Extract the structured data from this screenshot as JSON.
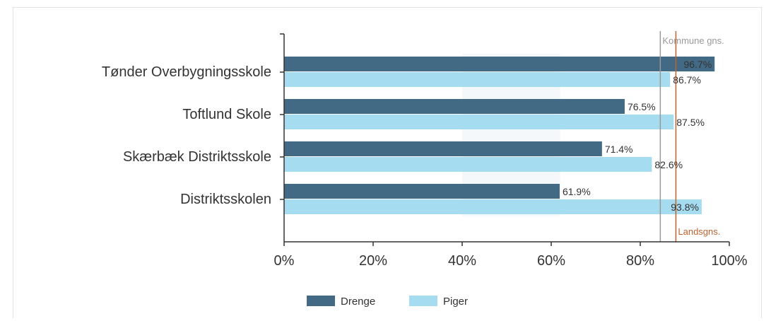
{
  "chart_data": {
    "type": "bar",
    "orientation": "horizontal",
    "categories": [
      "Tønder Overbygningsskole",
      "Toftlund Skole",
      "Skærbæk Distriktsskole",
      "Distriktsskolen"
    ],
    "series": [
      {
        "name": "Drenge",
        "color": "#426a85",
        "values": [
          96.7,
          76.5,
          71.4,
          61.9
        ],
        "labels": [
          "96.7%",
          "76.5%",
          "71.4%",
          "61.9%"
        ]
      },
      {
        "name": "Piger",
        "color": "#a6dcef",
        "values": [
          86.7,
          87.5,
          82.6,
          93.8
        ],
        "labels": [
          "86.7%",
          "87.5%",
          "82.6%",
          "93.8%"
        ]
      }
    ],
    "xlim": [
      0,
      100
    ],
    "xticks": [
      0,
      20,
      40,
      60,
      80,
      100
    ],
    "xtick_labels": [
      "0%",
      "20%",
      "40%",
      "60%",
      "80%",
      "100%"
    ],
    "reference_lines": [
      {
        "name": "Kommune gns.",
        "value": 84.5,
        "color": "#999999"
      },
      {
        "name": "Landsgns.",
        "value": 88.0,
        "color": "#c0622f"
      }
    ],
    "legend": {
      "placement": "bottom",
      "entries": [
        "Drenge",
        "Piger"
      ]
    },
    "title": "",
    "xlabel": "",
    "ylabel": ""
  }
}
